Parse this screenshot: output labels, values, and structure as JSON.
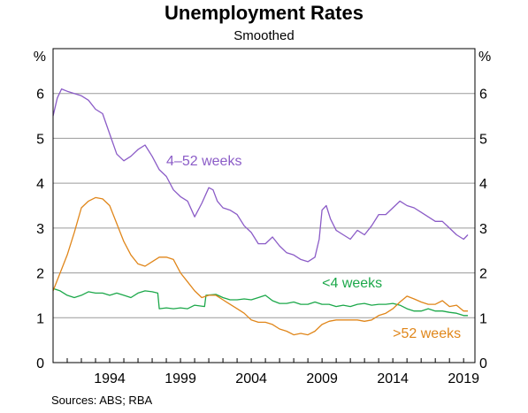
{
  "chart_data": {
    "type": "line",
    "title": "Unemployment Rates",
    "subtitle": "Smoothed",
    "unit_left": "%",
    "unit_right": "%",
    "ylim": [
      0,
      7
    ],
    "yticks": [
      0,
      1,
      2,
      3,
      4,
      5,
      6
    ],
    "xlim": [
      1990.0,
      2019.8
    ],
    "xticks": [
      1994,
      1999,
      2004,
      2009,
      2014,
      2019
    ],
    "grid": true,
    "legend": "inline labels",
    "source": "Sources:   ABS; RBA",
    "series": [
      {
        "name": "4–52 weeks",
        "color": "#8b5cc7",
        "label_at": [
          1998.0,
          4.4
        ],
        "x": [
          1990.0,
          1990.3,
          1990.6,
          1991.0,
          1991.5,
          1992.0,
          1992.5,
          1993.0,
          1993.5,
          1994.0,
          1994.5,
          1995.0,
          1995.5,
          1996.0,
          1996.5,
          1997.0,
          1997.5,
          1998.0,
          1998.5,
          1999.0,
          1999.5,
          2000.0,
          2000.5,
          2001.0,
          2001.3,
          2001.6,
          2002.0,
          2002.5,
          2003.0,
          2003.5,
          2004.0,
          2004.5,
          2005.0,
          2005.5,
          2006.0,
          2006.5,
          2007.0,
          2007.5,
          2008.0,
          2008.5,
          2008.8,
          2009.0,
          2009.3,
          2009.6,
          2010.0,
          2010.5,
          2011.0,
          2011.5,
          2012.0,
          2012.5,
          2013.0,
          2013.5,
          2014.0,
          2014.5,
          2015.0,
          2015.5,
          2016.0,
          2016.5,
          2017.0,
          2017.5,
          2018.0,
          2018.5,
          2019.0,
          2019.3
        ],
        "values": [
          5.5,
          5.9,
          6.1,
          6.05,
          6.0,
          5.95,
          5.85,
          5.65,
          5.55,
          5.1,
          4.65,
          4.5,
          4.6,
          4.75,
          4.85,
          4.6,
          4.3,
          4.15,
          3.85,
          3.7,
          3.6,
          3.25,
          3.55,
          3.9,
          3.85,
          3.6,
          3.45,
          3.4,
          3.3,
          3.05,
          2.9,
          2.65,
          2.65,
          2.8,
          2.6,
          2.45,
          2.4,
          2.3,
          2.25,
          2.35,
          2.75,
          3.4,
          3.5,
          3.2,
          2.95,
          2.85,
          2.75,
          2.95,
          2.85,
          3.05,
          3.3,
          3.3,
          3.45,
          3.6,
          3.5,
          3.45,
          3.35,
          3.25,
          3.15,
          3.15,
          3.0,
          2.85,
          2.75,
          2.85
        ]
      },
      {
        "name": "<4 weeks",
        "color": "#1ca84a",
        "label_at": [
          2009.0,
          1.68
        ],
        "x": [
          1990.0,
          1990.5,
          1991.0,
          1991.5,
          1992.0,
          1992.5,
          1993.0,
          1993.5,
          1994.0,
          1994.5,
          1995.0,
          1995.5,
          1996.0,
          1996.5,
          1997.0,
          1997.4,
          1997.5,
          1998.0,
          1998.5,
          1999.0,
          1999.5,
          2000.0,
          2000.7,
          2000.8,
          2001.5,
          2002.0,
          2002.5,
          2003.0,
          2003.5,
          2004.0,
          2004.5,
          2005.0,
          2005.5,
          2006.0,
          2006.5,
          2007.0,
          2007.5,
          2008.0,
          2008.5,
          2009.0,
          2009.5,
          2010.0,
          2010.5,
          2011.0,
          2011.5,
          2012.0,
          2012.5,
          2013.0,
          2013.5,
          2014.0,
          2014.5,
          2015.0,
          2015.5,
          2016.0,
          2016.5,
          2017.0,
          2017.5,
          2018.0,
          2018.5,
          2019.0,
          2019.3
        ],
        "values": [
          1.65,
          1.6,
          1.5,
          1.45,
          1.5,
          1.58,
          1.55,
          1.55,
          1.5,
          1.55,
          1.5,
          1.45,
          1.55,
          1.6,
          1.58,
          1.55,
          1.2,
          1.22,
          1.2,
          1.22,
          1.2,
          1.28,
          1.25,
          1.5,
          1.52,
          1.45,
          1.4,
          1.4,
          1.42,
          1.4,
          1.45,
          1.5,
          1.38,
          1.32,
          1.32,
          1.35,
          1.3,
          1.3,
          1.35,
          1.3,
          1.3,
          1.25,
          1.28,
          1.25,
          1.3,
          1.32,
          1.28,
          1.3,
          1.3,
          1.32,
          1.28,
          1.2,
          1.15,
          1.15,
          1.2,
          1.15,
          1.15,
          1.12,
          1.1,
          1.05,
          1.05
        ]
      },
      {
        "name": ">52 weeks",
        "color": "#e0861a",
        "label_at": [
          2014.0,
          0.55
        ],
        "x": [
          1990.0,
          1990.5,
          1991.0,
          1991.5,
          1992.0,
          1992.5,
          1993.0,
          1993.5,
          1994.0,
          1994.5,
          1995.0,
          1995.5,
          1996.0,
          1996.5,
          1997.0,
          1997.5,
          1998.0,
          1998.5,
          1999.0,
          1999.5,
          2000.0,
          2000.5,
          2001.0,
          2001.5,
          2002.0,
          2002.5,
          2003.0,
          2003.5,
          2004.0,
          2004.5,
          2005.0,
          2005.5,
          2006.0,
          2006.5,
          2007.0,
          2007.5,
          2008.0,
          2008.5,
          2009.0,
          2009.5,
          2010.0,
          2010.5,
          2011.0,
          2011.5,
          2012.0,
          2012.5,
          2013.0,
          2013.5,
          2014.0,
          2014.5,
          2015.0,
          2015.5,
          2016.0,
          2016.5,
          2017.0,
          2017.5,
          2018.0,
          2018.5,
          2019.0,
          2019.3
        ],
        "values": [
          1.6,
          2.0,
          2.4,
          2.9,
          3.45,
          3.6,
          3.68,
          3.65,
          3.5,
          3.1,
          2.7,
          2.4,
          2.2,
          2.15,
          2.25,
          2.35,
          2.35,
          2.3,
          2.0,
          1.8,
          1.6,
          1.45,
          1.5,
          1.5,
          1.4,
          1.3,
          1.2,
          1.1,
          0.95,
          0.9,
          0.9,
          0.85,
          0.75,
          0.7,
          0.62,
          0.65,
          0.62,
          0.7,
          0.85,
          0.92,
          0.95,
          0.95,
          0.95,
          0.95,
          0.92,
          0.95,
          1.05,
          1.1,
          1.2,
          1.35,
          1.48,
          1.42,
          1.35,
          1.3,
          1.3,
          1.38,
          1.25,
          1.28,
          1.15,
          1.15
        ]
      }
    ]
  }
}
